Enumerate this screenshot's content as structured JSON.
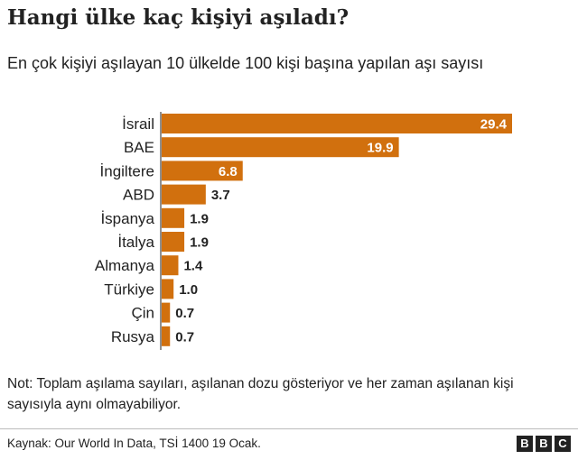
{
  "title": "Hangi ülke kaç kişiyi aşıladı?",
  "subtitle": "En çok  kişiyi aşılayan 10 ülkelde 100 kişi başına yapılan aşı sayısı",
  "note": "Not: Toplam aşılama sayıları, aşılanan dozu gösteriyor ve her zaman aşılanan kişi sayısıyla aynı olmayabiliyor.",
  "source": "Kaynak: Our World In Data, TSİ 1400 19 Ocak.",
  "logo": [
    "B",
    "B",
    "C"
  ],
  "chart_data": {
    "type": "bar",
    "orientation": "horizontal",
    "categories": [
      "İsrail",
      "BAE",
      "İngiltere",
      "ABD",
      "İspanya",
      "İtalya",
      "Almanya",
      "Türkiye",
      "Çin",
      "Rusya"
    ],
    "values": [
      29.4,
      19.9,
      6.8,
      3.7,
      1.9,
      1.9,
      1.4,
      1.0,
      0.7,
      0.7
    ],
    "value_labels": [
      "29.4",
      "19.9",
      "6.8",
      "3.7",
      "1.9",
      "1.9",
      "1.4",
      "1.0",
      "0.7",
      "0.7"
    ],
    "xlim": [
      0,
      29.4
    ],
    "grid": false,
    "bar_color": "#d1700e"
  }
}
